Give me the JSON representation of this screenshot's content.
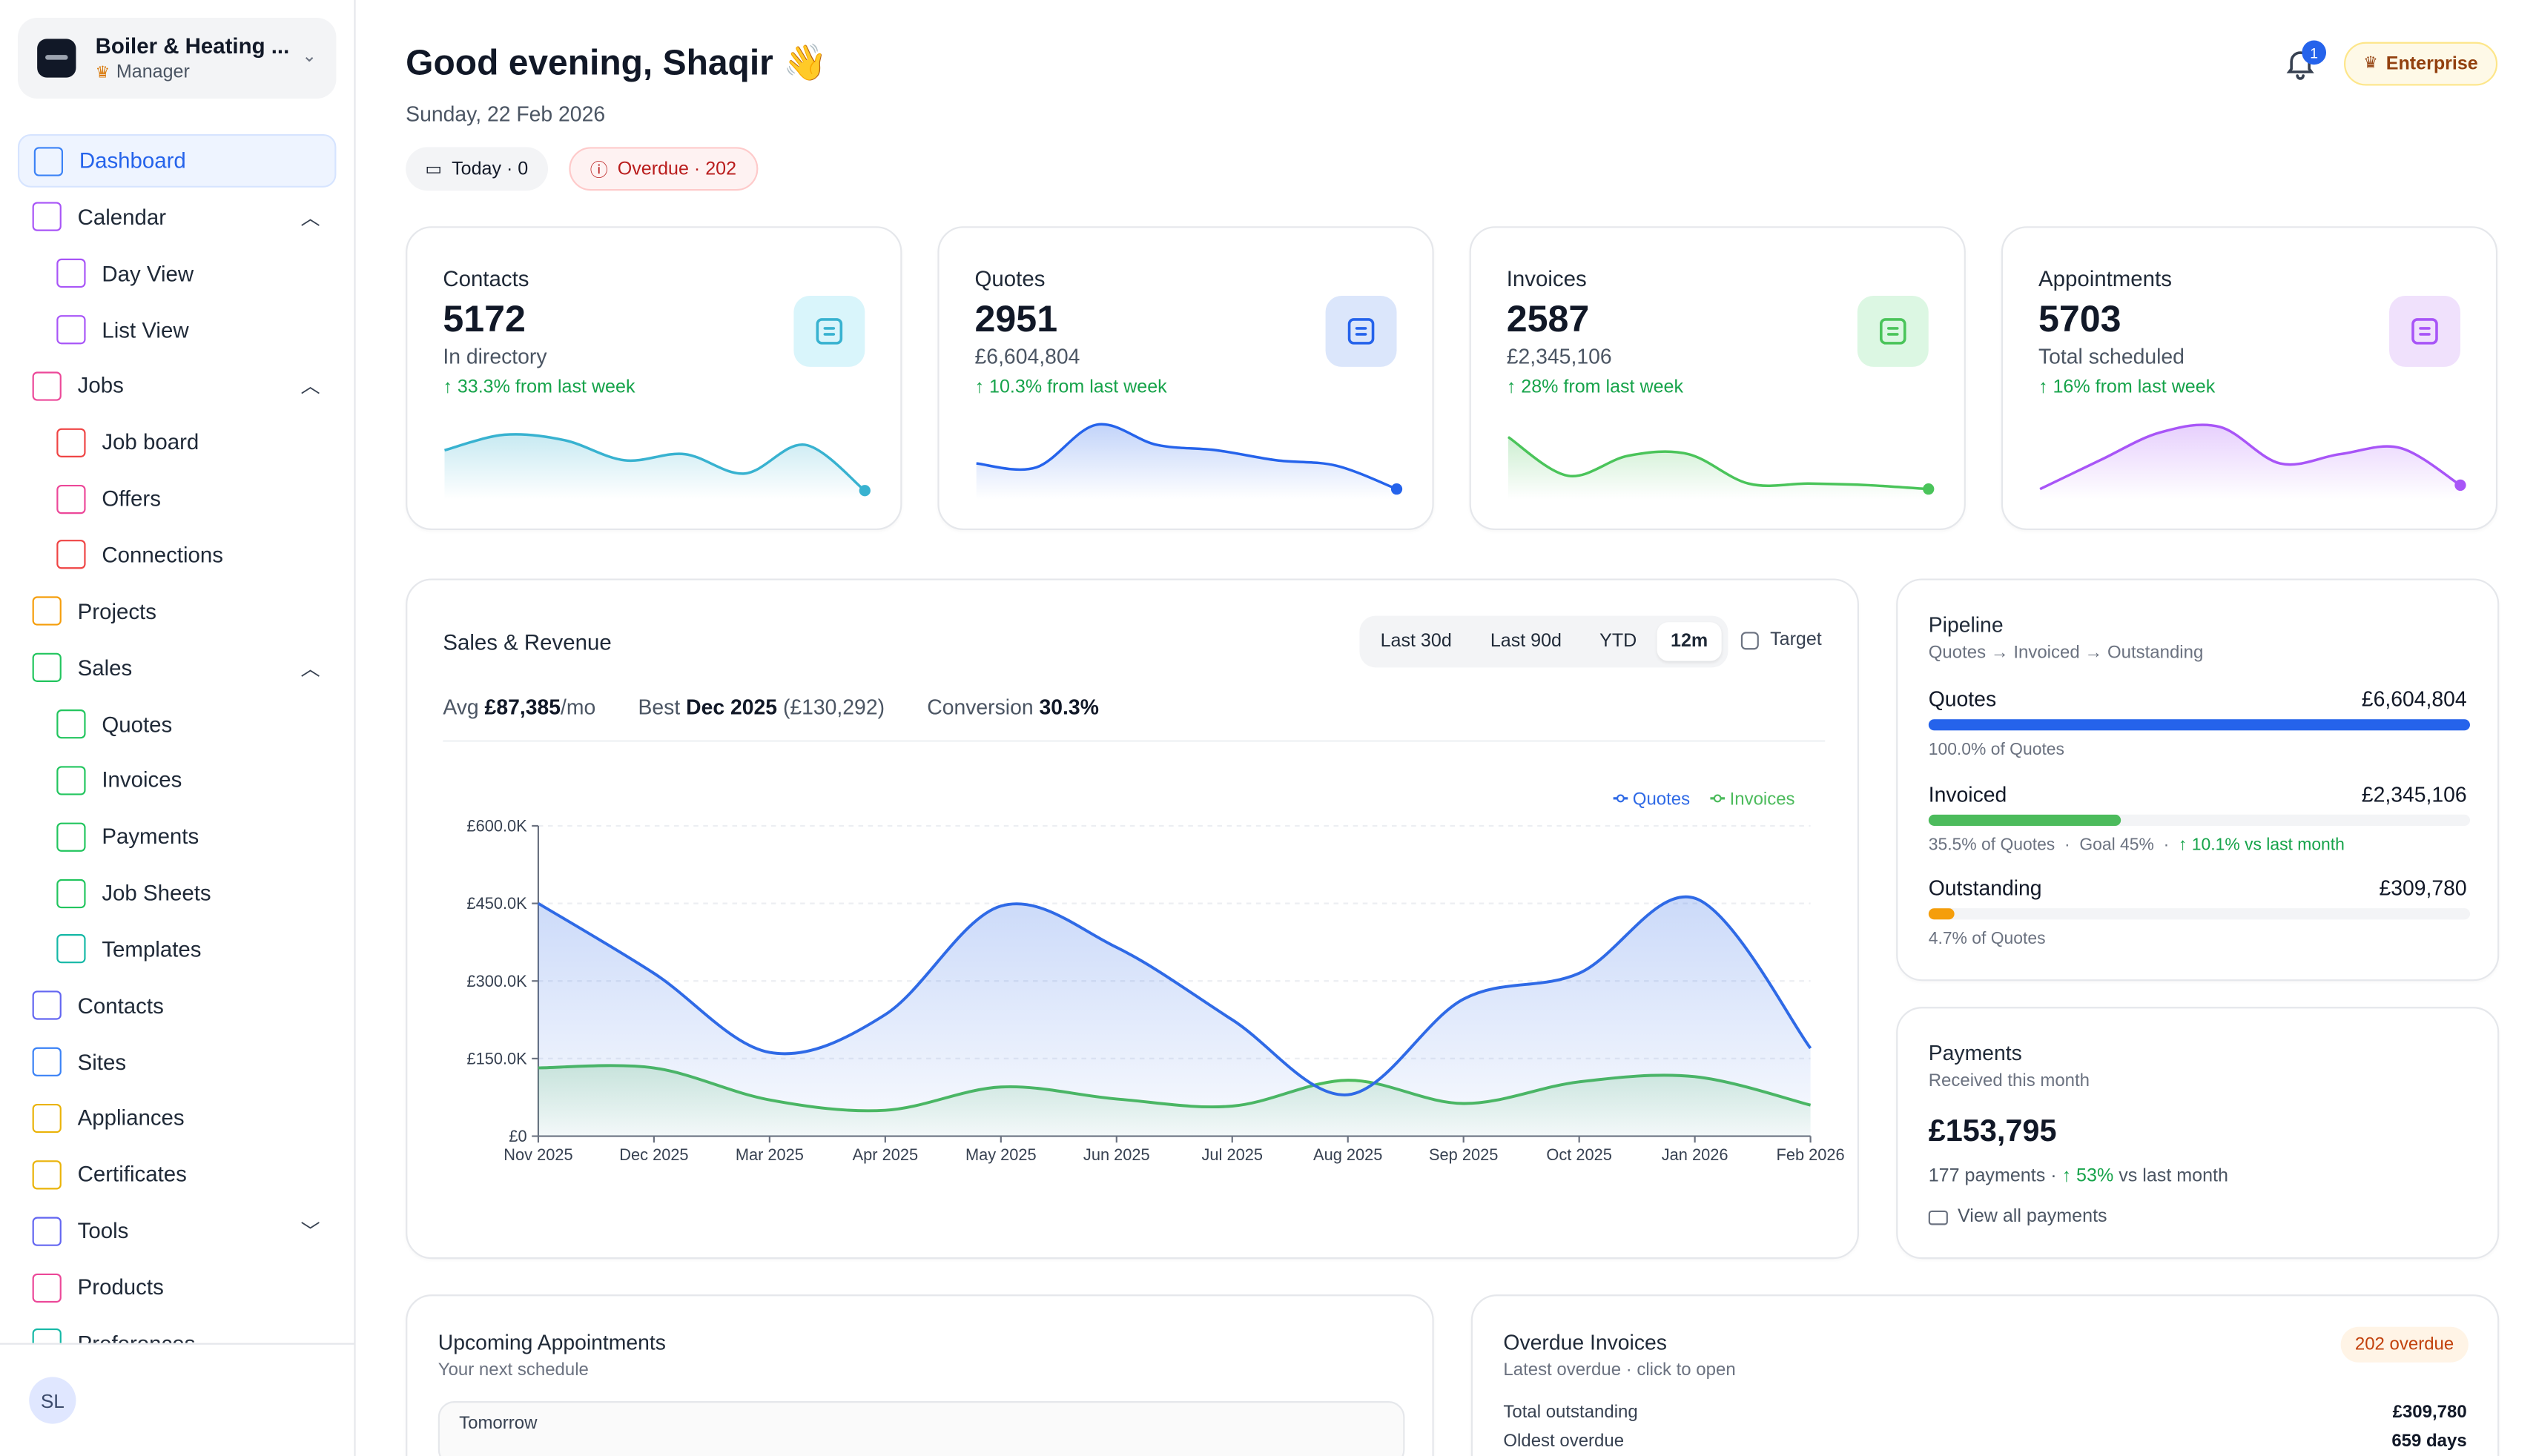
{
  "org": {
    "name": "Boiler & Heating ...",
    "role": "Manager"
  },
  "nav": [
    {
      "label": "Dashboard",
      "icon": "home-icon",
      "active": true
    },
    {
      "label": "Calendar",
      "icon": "calendar-icon",
      "chevron": "up"
    },
    {
      "label": "Day View",
      "icon": "calendar-day-icon",
      "sub": true
    },
    {
      "label": "List View",
      "icon": "list-icon",
      "sub": true
    },
    {
      "label": "Jobs",
      "icon": "jobs-icon",
      "chevron": "up"
    },
    {
      "label": "Job board",
      "icon": "board-icon",
      "sub": true
    },
    {
      "label": "Offers",
      "icon": "offers-icon",
      "sub": true
    },
    {
      "label": "Connections",
      "icon": "connections-icon",
      "sub": true
    },
    {
      "label": "Projects",
      "icon": "projects-icon"
    },
    {
      "label": "Sales",
      "icon": "sales-icon",
      "chevron": "up"
    },
    {
      "label": "Quotes",
      "icon": "quote-doc-icon",
      "sub": true
    },
    {
      "label": "Invoices",
      "icon": "invoice-doc-icon",
      "sub": true
    },
    {
      "label": "Payments",
      "icon": "payments-icon",
      "sub": true
    },
    {
      "label": "Job Sheets",
      "icon": "job-sheet-icon",
      "sub": true
    },
    {
      "label": "Templates",
      "icon": "templates-icon",
      "sub": true
    },
    {
      "label": "Contacts",
      "icon": "contacts-icon"
    },
    {
      "label": "Sites",
      "icon": "sites-icon"
    },
    {
      "label": "Appliances",
      "icon": "appliances-icon"
    },
    {
      "label": "Certificates",
      "icon": "certificates-icon"
    },
    {
      "label": "Tools",
      "icon": "tools-icon",
      "chevron": "down"
    },
    {
      "label": "Products",
      "icon": "products-icon"
    },
    {
      "label": "Preferences",
      "icon": "preferences-icon"
    }
  ],
  "user": {
    "initials": "SL"
  },
  "header": {
    "greeting": "Good evening, Shaqir 👋",
    "date": "Sunday, 22 Feb 2026",
    "today_label": "Today · 0",
    "overdue_label": "Overdue · 202",
    "notification_count": "1",
    "plan": "Enterprise"
  },
  "stats": [
    {
      "title": "Contacts",
      "value": "5172",
      "sub": "In directory",
      "trend": "↑ 33.3% from last week",
      "color": "#38b2d0",
      "icon": "users-icon",
      "spark": [
        0.55,
        0.75,
        0.68,
        0.42,
        0.5,
        0.25,
        0.62,
        0.03
      ]
    },
    {
      "title": "Quotes",
      "value": "2951",
      "sub": "£6,604,804",
      "trend": "↑ 10.3% from last week",
      "color": "#2563eb",
      "icon": "dollar-doc-icon",
      "spark": [
        0.38,
        0.33,
        0.88,
        0.62,
        0.55,
        0.42,
        0.35,
        0.05
      ]
    },
    {
      "title": "Invoices",
      "value": "2587",
      "sub": "£2,345,106",
      "trend": "↑ 28% from last week",
      "color": "#4ac45a",
      "icon": "cash-icon",
      "spark": [
        0.72,
        0.22,
        0.48,
        0.5,
        0.12,
        0.12,
        0.1,
        0.05
      ]
    },
    {
      "title": "Appointments",
      "value": "5703",
      "sub": "Total scheduled",
      "trend": "↑ 16% from last week",
      "color": "#a855f7",
      "icon": "calendar-icon",
      "spark": [
        0.05,
        0.42,
        0.78,
        0.85,
        0.38,
        0.5,
        0.58,
        0.1
      ]
    }
  ],
  "sales": {
    "title": "Sales & Revenue",
    "ranges": [
      "Last 30d",
      "Last 90d",
      "YTD",
      "12m"
    ],
    "selected_range": "12m",
    "target_label": "Target",
    "avg_label": "Avg",
    "avg_value": "£87,385",
    "avg_unit": "/mo",
    "best_label": "Best",
    "best_month": "Dec 2025",
    "best_amount": "(£130,292)",
    "conversion_label": "Conversion",
    "conversion_value": "30.3%"
  },
  "chart_data": {
    "type": "area",
    "categories": [
      "Nov 2025",
      "Dec 2025",
      "Mar 2025",
      "Apr 2025",
      "May 2025",
      "Jun 2025",
      "Jul 2025",
      "Aug 2025",
      "Sep 2025",
      "Oct 2025",
      "Jan 2026",
      "Feb 2026"
    ],
    "series": [
      {
        "name": "Quotes",
        "color": "#2f6ae6",
        "values": [
          450000,
          315000,
          162000,
          235000,
          445000,
          365000,
          225000,
          80000,
          265000,
          315000,
          460000,
          170000
        ]
      },
      {
        "name": "Invoices",
        "color": "#4cbb5c",
        "values": [
          132000,
          132000,
          70000,
          50000,
          95000,
          72000,
          58000,
          108000,
          63000,
          105000,
          115000,
          60000
        ]
      }
    ],
    "yticks": [
      "£0",
      "£150.0K",
      "£300.0K",
      "£450.0K",
      "£600.0K"
    ],
    "ylim": [
      0,
      600000
    ],
    "legend": "top-right",
    "grid": true
  },
  "pipeline": {
    "title": "Pipeline",
    "subtitle": "Quotes → Invoiced → Outstanding",
    "rows": [
      {
        "label": "Quotes",
        "value": "£6,604,804",
        "fraction": 1.0,
        "color": "#2563eb",
        "note": "100.0% of Quotes"
      },
      {
        "label": "Invoiced",
        "value": "£2,345,106",
        "fraction": 0.355,
        "color": "#4cbb5c",
        "note": "35.5% of Quotes",
        "goal": "Goal 45%",
        "trend": "↑ 10.1% vs last month"
      },
      {
        "label": "Outstanding",
        "value": "£309,780",
        "fraction": 0.047,
        "color": "#f59e0b",
        "note": "4.7% of Quotes"
      }
    ]
  },
  "payments": {
    "title": "Payments",
    "subtitle": "Received this month",
    "amount": "£153,795",
    "count": "177 payments",
    "trend": "↑ 53%",
    "trend_suffix": "vs last month",
    "link": "View all payments"
  },
  "upcoming": {
    "title": "Upcoming Appointments",
    "subtitle": "Your next schedule",
    "group": "Tomorrow"
  },
  "overdue": {
    "title": "Overdue Invoices",
    "subtitle": "Latest overdue · click to open",
    "badge": "202 overdue",
    "total_label": "Total outstanding",
    "total_value": "£309,780",
    "oldest_label": "Oldest overdue",
    "oldest_value": "659 days"
  }
}
